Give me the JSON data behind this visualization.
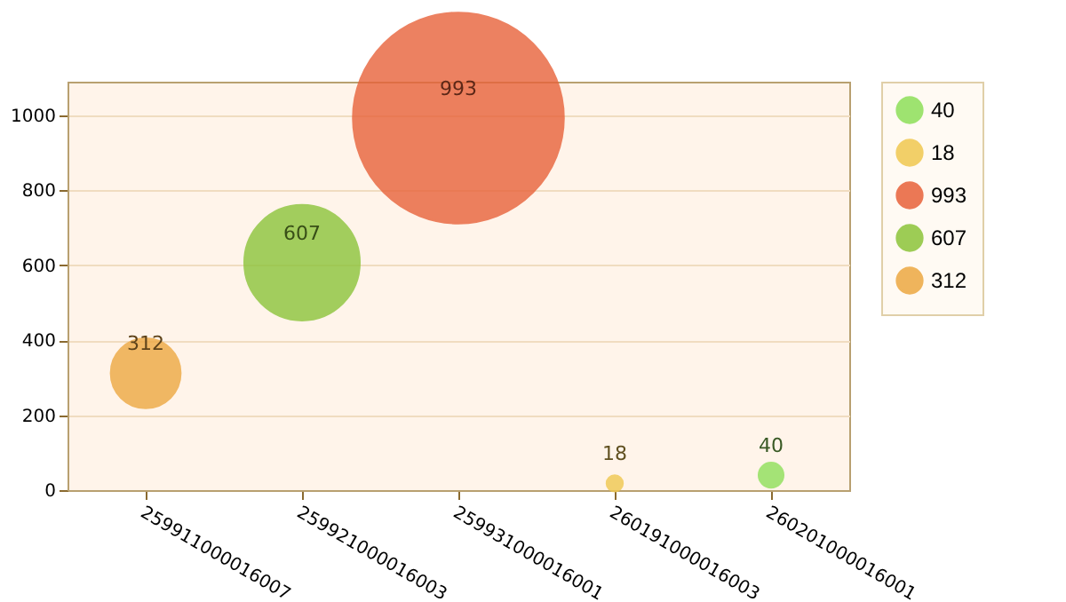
{
  "chart_data": {
    "type": "bubble",
    "categories": [
      "259911000016007",
      "259921000016003",
      "259931000016001",
      "260191000016003",
      "260201000016001"
    ],
    "series": [
      {
        "name": "40",
        "color": "#8ee05a",
        "values": [
          null,
          null,
          null,
          null,
          40
        ],
        "sizes": [
          null,
          null,
          null,
          null,
          0.014
        ]
      },
      {
        "name": "18",
        "color": "#f0c850",
        "values": [
          null,
          null,
          null,
          18,
          null
        ],
        "sizes": [
          null,
          null,
          null,
          0.006,
          null
        ]
      },
      {
        "name": "993",
        "color": "#e8623a",
        "values": [
          null,
          null,
          993,
          null,
          null
        ],
        "sizes": [
          null,
          null,
          1,
          null,
          null
        ]
      },
      {
        "name": "607",
        "color": "#8cc43a",
        "values": [
          null,
          607,
          null,
          null,
          null
        ],
        "sizes": [
          null,
          0.3,
          null,
          null,
          null
        ]
      },
      {
        "name": "312",
        "color": "#eda842",
        "values": [
          312,
          null,
          null,
          null,
          null
        ],
        "sizes": [
          0.11,
          null,
          null,
          null,
          null
        ]
      }
    ],
    "ylim": [
      0,
      1090
    ],
    "yticks": [
      0,
      200,
      400,
      600,
      800,
      1000
    ],
    "grid": "y",
    "legend": "top right",
    "data_labels": true,
    "marker": "circle"
  }
}
